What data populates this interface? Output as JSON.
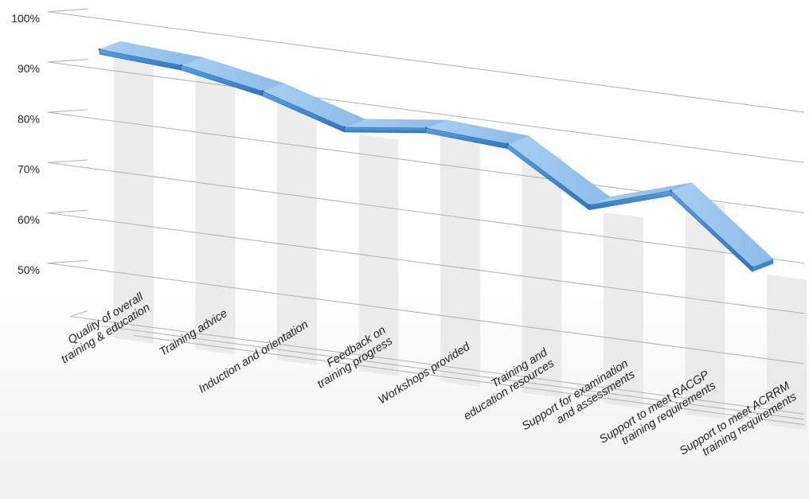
{
  "chart_data": {
    "type": "line",
    "title": "",
    "xlabel": "",
    "ylabel": "",
    "ylim": [
      40,
      100
    ],
    "yticks": [
      "100%",
      "90%",
      "80%",
      "70%",
      "60%",
      "50%"
    ],
    "categories": [
      [
        "Quality of overall",
        "training & education"
      ],
      [
        "Training advice"
      ],
      [
        "Induction and orientation"
      ],
      [
        "Feedback on",
        "training progress"
      ],
      [
        "Workshops provided"
      ],
      [
        "Training and",
        "education resources"
      ],
      [
        "Support for examination",
        "and assessments"
      ],
      [
        "Support to meet RACGP",
        "training requirements"
      ],
      [
        "Support to meet ACRRM",
        "training requirements"
      ]
    ],
    "series": [
      {
        "values": [
          95,
          94,
          91,
          86,
          88,
          87,
          77,
          82,
          69
        ]
      }
    ],
    "grid": true,
    "legend": "none",
    "colors": {
      "ribbon_top": "#9cc6ec",
      "ribbon_face": "#4a93d6",
      "ribbon_edge": "#2a6db2",
      "grid": "#b5b5b5",
      "wall": "#e6e6e6"
    }
  }
}
